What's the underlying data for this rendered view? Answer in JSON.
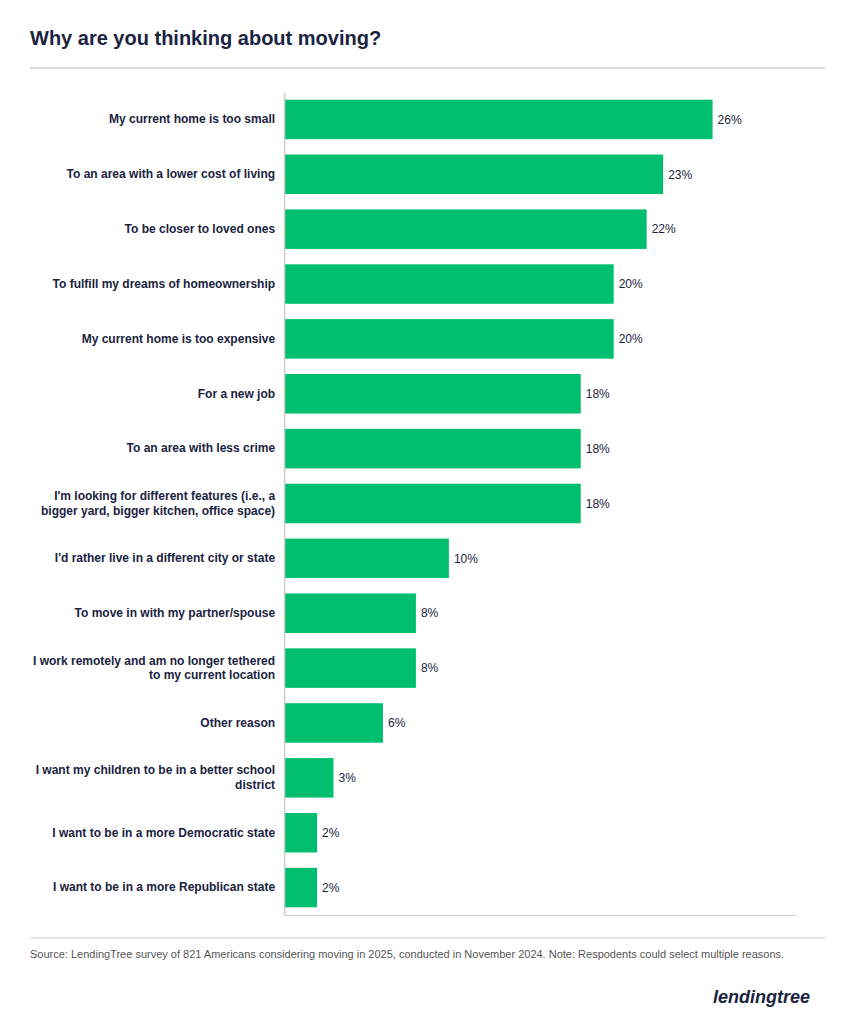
{
  "chart_data": {
    "type": "bar",
    "orientation": "horizontal",
    "title": "Why are you thinking about moving?",
    "categories": [
      "My current home is too small",
      "To an area with a lower cost of living",
      "To be closer to loved ones",
      "To fulfill my dreams of homeownership",
      "My current home is too expensive",
      "For a new job",
      "To an area with less crime",
      "I'm looking for different features (i.e., a\nbigger yard, bigger kitchen, office space)",
      "I'd rather live in a different city or state",
      "To move in with my partner/spouse",
      "I work remotely and am no longer tethered\nto my current location",
      "Other reason",
      "I want my children to be in a better school\ndistrict",
      "I want to be in a more Democratic state",
      "I want to be in a more Republican state"
    ],
    "values": [
      26,
      23,
      22,
      20,
      20,
      18,
      18,
      18,
      10,
      8,
      8,
      6,
      3,
      2,
      2
    ],
    "value_labels": [
      "26%",
      "23%",
      "22%",
      "20%",
      "20%",
      "18%",
      "18%",
      "18%",
      "10%",
      "8%",
      "8%",
      "6%",
      "3%",
      "2%",
      "2%"
    ],
    "data_labels": true,
    "color": "#00BF6F",
    "xlim": [
      0,
      31
    ],
    "xticks": [],
    "tick_labels": "y",
    "grid": false,
    "annotations": [
      "Source: LendingTree survey of 821 Americans considering moving in 2025, conducted in November 2024. Note: Respodents could select multiple reasons.",
      "lendingtree"
    ]
  }
}
